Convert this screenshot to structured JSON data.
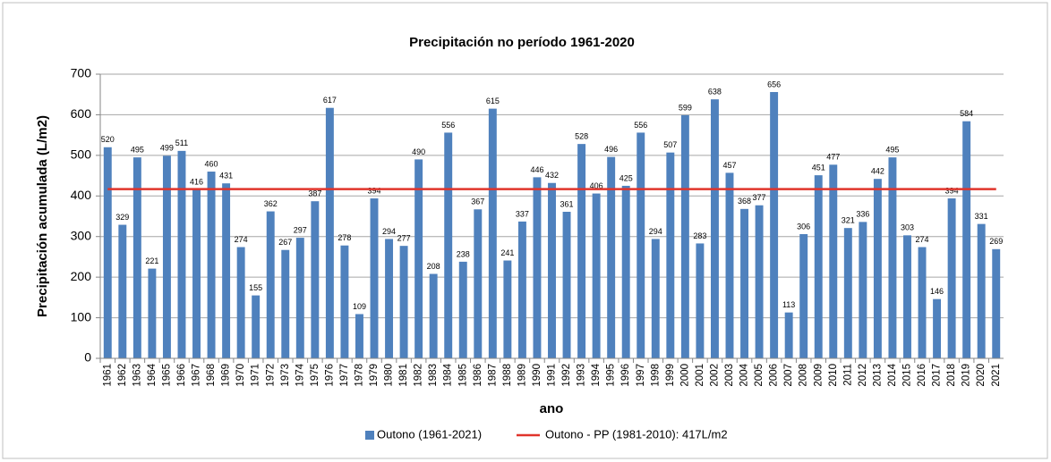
{
  "chart_data": {
    "type": "bar",
    "title": "Precipitación  no período 1961-2020",
    "x_label": "ano",
    "y_label": "Precipitación  acumulada  (L/m2)",
    "categories": [
      "1961",
      "1962",
      "1963",
      "1964",
      "1965",
      "1966",
      "1967",
      "1968",
      "1969",
      "1970",
      "1971",
      "1972",
      "1973",
      "1974",
      "1975",
      "1976",
      "1977",
      "1978",
      "1979",
      "1980",
      "1981",
      "1982",
      "1983",
      "1984",
      "1985",
      "1986",
      "1987",
      "1988",
      "1989",
      "1990",
      "1991",
      "1992",
      "1993",
      "1994",
      "1995",
      "1996",
      "1997",
      "1998",
      "1999",
      "2000",
      "2001",
      "2002",
      "2003",
      "2004",
      "2005",
      "2006",
      "2007",
      "2008",
      "2009",
      "2010",
      "2011",
      "2012",
      "2013",
      "2014",
      "2015",
      "2016",
      "2017",
      "2018",
      "2019",
      "2020",
      "2021"
    ],
    "series": [
      {
        "name": "Outono (1961-2021)",
        "color": "#4f81bd",
        "values": [
          520,
          329,
          495,
          221,
          499,
          511,
          416,
          460,
          431,
          274,
          155,
          362,
          267,
          297,
          387,
          617,
          278,
          109,
          394,
          294,
          277,
          490,
          208,
          556,
          238,
          367,
          615,
          241,
          337,
          446,
          432,
          361,
          528,
          406,
          496,
          425,
          556,
          294,
          507,
          599,
          283,
          638,
          457,
          368,
          377,
          656,
          113,
          306,
          451,
          477,
          321,
          336,
          442,
          495,
          303,
          274,
          146,
          394,
          584,
          331,
          269
        ]
      }
    ],
    "reference_line": {
      "name": "Outono - PP (1981-2010): 417L/m2",
      "color": "#e0342b",
      "value": 417
    },
    "ylim": [
      0,
      700
    ],
    "yticks": [
      0,
      100,
      200,
      300,
      400,
      500,
      600,
      700
    ],
    "grid": true
  }
}
